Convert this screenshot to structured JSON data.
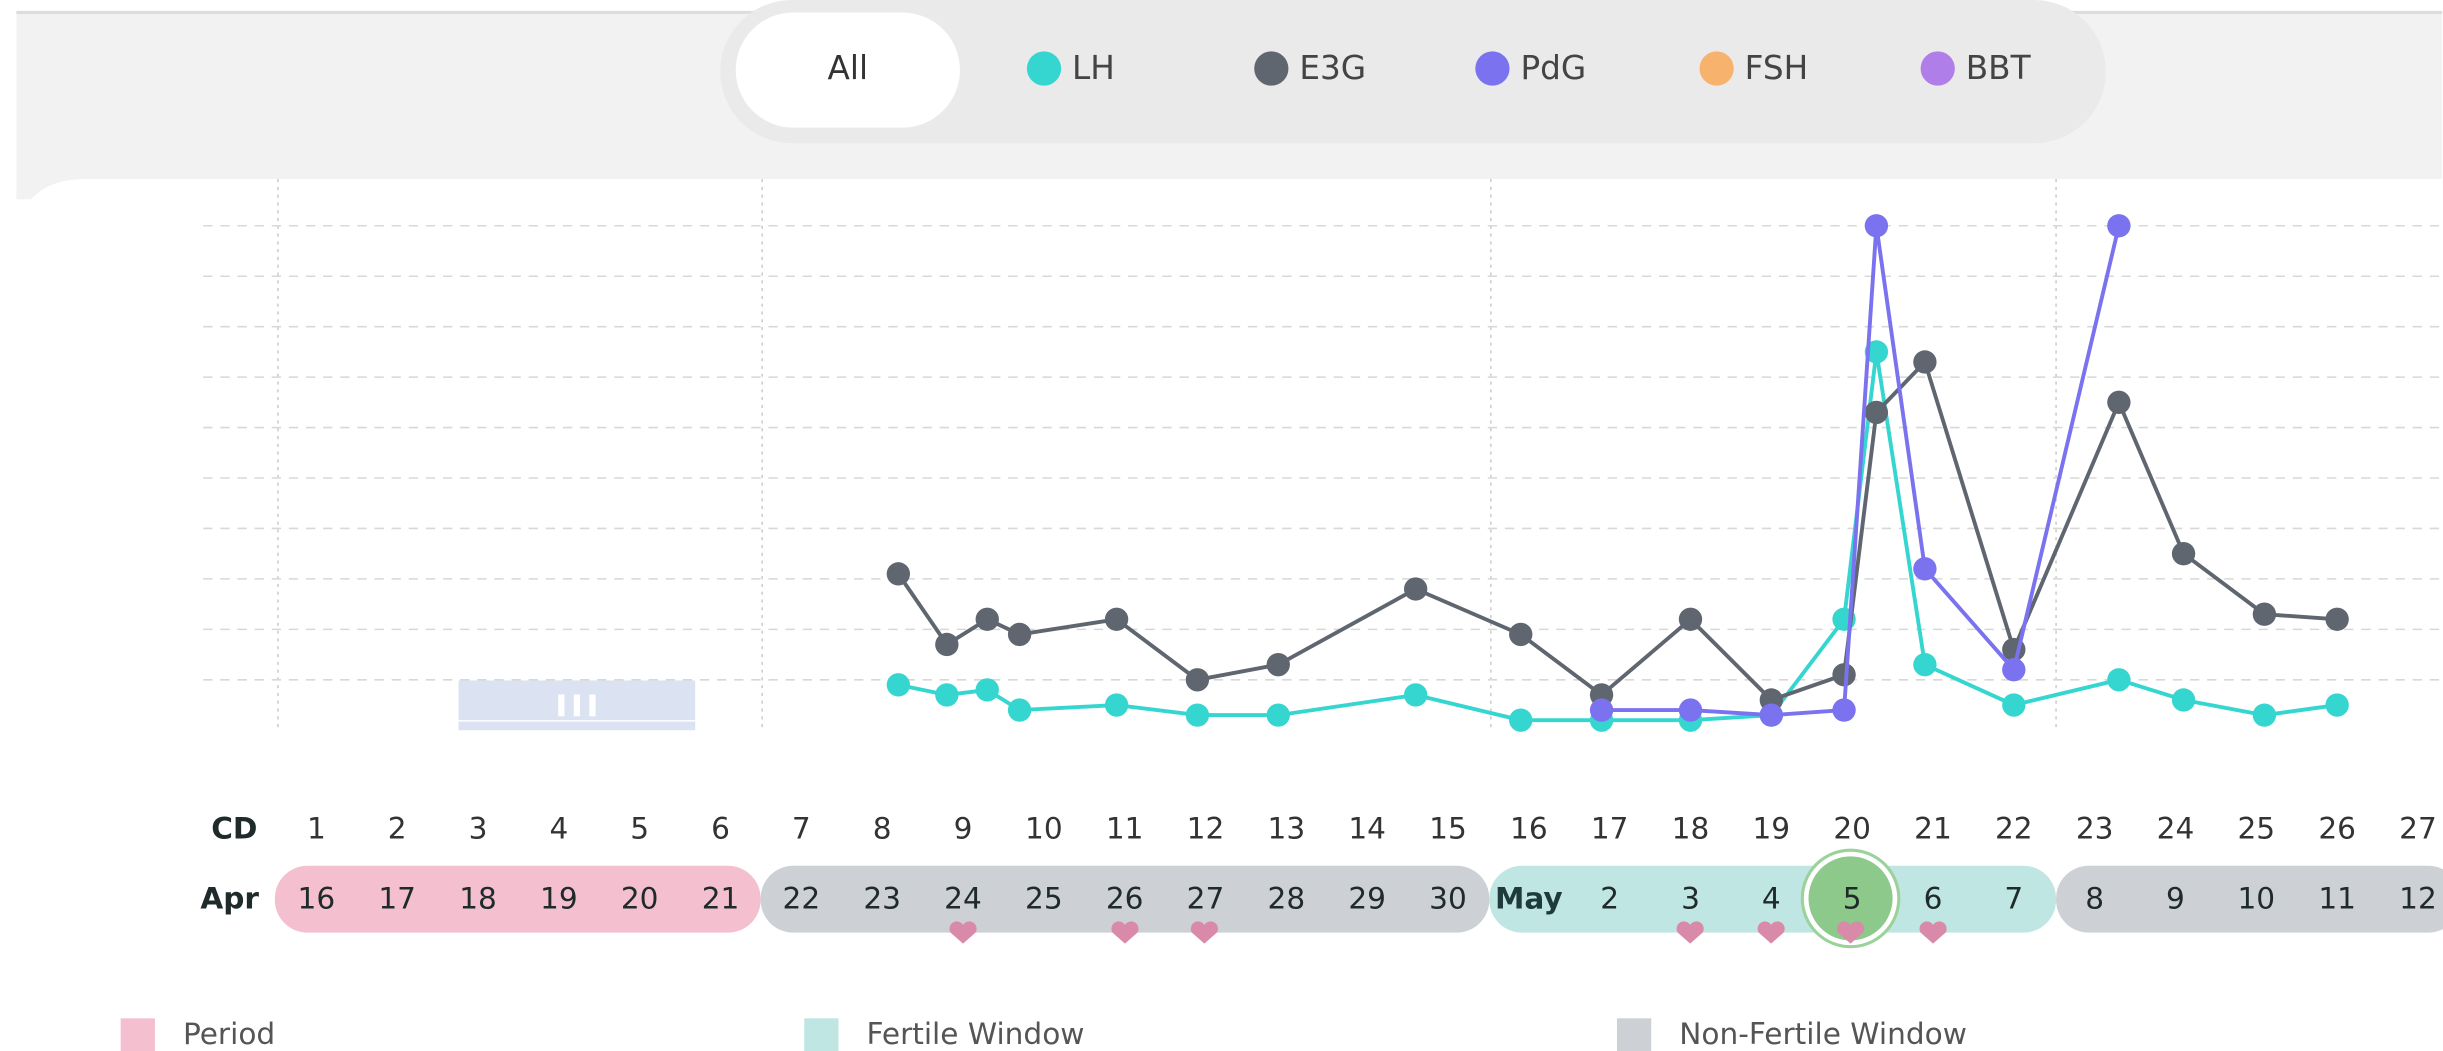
{
  "chart_data": {
    "type": "line",
    "filters": [
      "All",
      "LH",
      "E3G",
      "PdG",
      "FSH",
      "BBT"
    ],
    "filter_colors": [
      null,
      "#36d6d0",
      "#5f6670",
      "#7a72ee",
      "#f7b26e",
      "#b07ee8"
    ],
    "cd_label": "CD",
    "month_label": "Apr",
    "xticks": [
      1,
      2,
      3,
      4,
      5,
      6,
      7,
      8,
      9,
      10,
      11,
      12,
      13,
      14,
      15,
      16,
      17,
      18,
      19,
      20,
      21,
      22,
      23,
      24,
      25,
      26,
      27
    ],
    "dates": [
      16,
      17,
      18,
      19,
      20,
      21,
      22,
      23,
      24,
      25,
      26,
      27,
      28,
      29,
      30,
      "May",
      2,
      3,
      4,
      5,
      6,
      7,
      8,
      9,
      10,
      11,
      12
    ],
    "xlim": [
      -0.4,
      27.3
    ],
    "ylim": [
      0,
      10
    ],
    "yticks": [
      1,
      2,
      3,
      4,
      5,
      6,
      7,
      8,
      9,
      10
    ],
    "grid": true,
    "series": [
      {
        "name": "LH",
        "color": "#36d6d0",
        "x": [
          8.2,
          8.8,
          9.3,
          9.7,
          10.9,
          11.9,
          12.9,
          14.6,
          15.9,
          16.9,
          18.0,
          19.0,
          19.9,
          20.3,
          20.9,
          22.0,
          23.3,
          24.1,
          25.1,
          26.0
        ],
        "values": [
          0.9,
          0.7,
          0.8,
          0.4,
          0.5,
          0.3,
          0.3,
          0.7,
          0.2,
          0.2,
          0.2,
          0.3,
          2.2,
          7.5,
          1.3,
          0.5,
          1.0,
          0.6,
          0.3,
          0.5
        ]
      },
      {
        "name": "E3G",
        "color": "#5f6670",
        "x": [
          8.2,
          8.8,
          9.3,
          9.7,
          10.9,
          11.9,
          12.9,
          14.6,
          15.9,
          16.9,
          18.0,
          19.0,
          19.9,
          20.3,
          20.9,
          22.0,
          23.3,
          24.1,
          25.1,
          26.0
        ],
        "values": [
          3.1,
          1.7,
          2.2,
          1.9,
          2.2,
          1.0,
          1.3,
          2.8,
          1.9,
          0.7,
          2.2,
          0.6,
          1.1,
          6.3,
          7.3,
          1.6,
          6.5,
          3.5,
          2.3,
          2.2
        ]
      },
      {
        "name": "PdG",
        "color": "#7a72ee",
        "x": [
          16.9,
          18.0,
          19.0,
          19.9,
          20.3,
          20.9,
          22.0,
          23.3
        ],
        "values": [
          0.4,
          0.4,
          0.3,
          0.4,
          10.0,
          3.2,
          1.2,
          10.0
        ]
      }
    ],
    "legend": [
      {
        "name": "Period",
        "color": "#f4bfcf"
      },
      {
        "name": "Fertile Window",
        "color": "#bfe6e2"
      },
      {
        "name": "Non-Fertile Window",
        "color": "#cdd0d5"
      }
    ]
  }
}
